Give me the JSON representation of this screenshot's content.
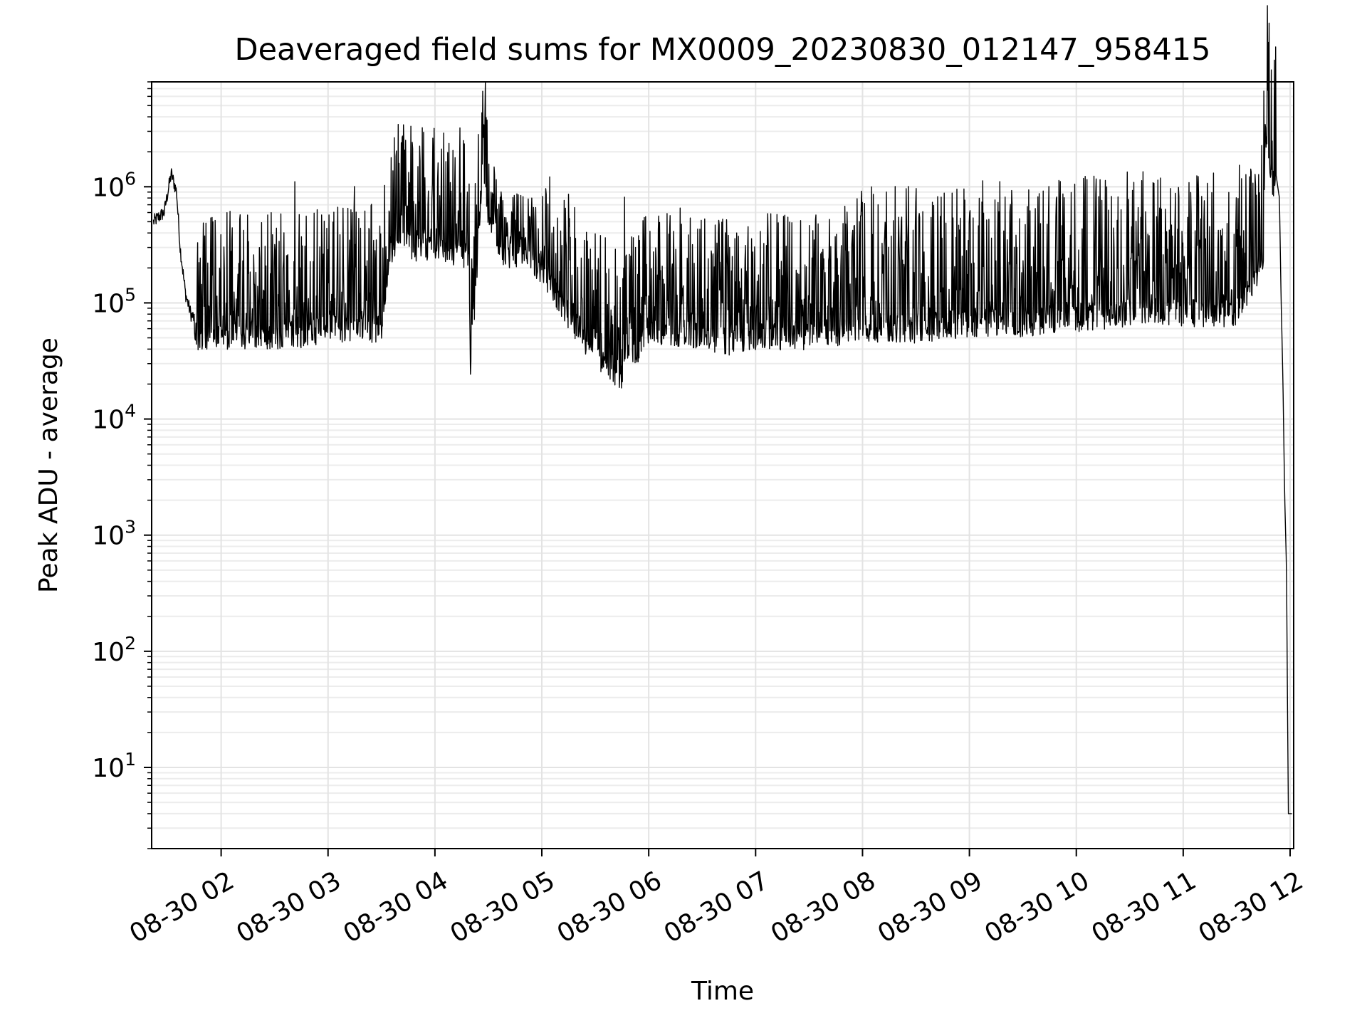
{
  "chart_data": {
    "type": "line",
    "title": "Deaveraged field sums for MX0009_20230830_012147_958415",
    "xlabel": "Time",
    "ylabel": "Peak ADU - average",
    "yscale": "log",
    "grid": true,
    "x_tick_labels": [
      "08-30 02",
      "08-30 03",
      "08-30 04",
      "08-30 05",
      "08-30 06",
      "08-30 07",
      "08-30 08",
      "08-30 09",
      "08-30 10",
      "08-30 11",
      "08-30 12"
    ],
    "y_tick_labels": [
      {
        "base": "10",
        "exp": "1"
      },
      {
        "base": "10",
        "exp": "2"
      },
      {
        "base": "10",
        "exp": "3"
      },
      {
        "base": "10",
        "exp": "4"
      },
      {
        "base": "10",
        "exp": "5"
      },
      {
        "base": "10",
        "exp": "6"
      }
    ],
    "x_range": [
      "2023-08-30 01:21",
      "2023-08-30 12:02"
    ],
    "y_range": [
      2,
      8000000
    ],
    "line_color": "#000000",
    "series": [
      {
        "x": [
          "2023-08-30 01:22",
          "2023-08-30 01:25",
          "2023-08-30 01:28",
          "2023-08-30 01:32",
          "2023-08-30 01:35",
          "2023-08-30 01:37",
          "2023-08-30 01:40",
          "2023-08-30 01:43",
          "2023-08-30 01:46",
          "2023-08-30 01:50",
          "2023-08-30 02:00",
          "2023-08-30 02:34",
          "2023-08-30 02:40",
          "2023-08-30 03:02",
          "2023-08-30 03:30",
          "2023-08-30 03:35",
          "2023-08-30 04:00",
          "2023-08-30 04:19",
          "2023-08-30 04:20",
          "2023-08-30 04:26",
          "2023-08-30 04:40",
          "2023-08-30 04:50",
          "2023-08-30 05:00",
          "2023-08-30 05:20",
          "2023-08-30 05:30",
          "2023-08-30 05:45",
          "2023-08-30 06:00",
          "2023-08-30 06:30",
          "2023-08-30 06:46",
          "2023-08-30 07:00",
          "2023-08-30 07:30",
          "2023-08-30 08:00",
          "2023-08-30 08:30",
          "2023-08-30 09:00",
          "2023-08-30 09:30",
          "2023-08-30 10:00",
          "2023-08-30 10:30",
          "2023-08-30 11:00",
          "2023-08-30 11:30",
          "2023-08-30 11:45",
          "2023-08-30 11:46",
          "2023-08-30 11:50",
          "2023-08-30 11:52",
          "2023-08-30 11:54",
          "2023-08-30 11:55",
          "2023-08-30 11:56",
          "2023-08-30 11:57",
          "2023-08-30 11:58",
          "2023-08-30 11:59",
          "2023-08-30 12:00",
          "2023-08-30 12:01"
        ],
        "y": [
          500000,
          550000,
          600000,
          1300000,
          900000,
          300000,
          120000,
          80000,
          70000,
          70000,
          70000,
          70000,
          70000,
          80000,
          80000,
          400000,
          400000,
          350000,
          30000,
          1300000,
          300000,
          400000,
          250000,
          80000,
          50000,
          30000,
          80000,
          70000,
          60000,
          70000,
          70000,
          80000,
          80000,
          90000,
          90000,
          100000,
          110000,
          110000,
          110000,
          300000,
          4500000,
          1400000,
          1300000,
          800000,
          100000,
          20000,
          2000,
          500,
          4,
          4,
          4
        ]
      }
    ]
  }
}
